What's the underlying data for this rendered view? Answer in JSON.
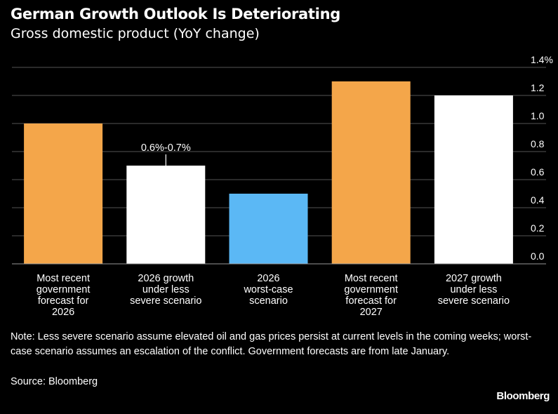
{
  "chart_data": {
    "type": "bar",
    "title": "German Growth Outlook Is Deteriorating",
    "subtitle": "Gross domestic product (YoY change)",
    "categories": [
      [
        "Most recent",
        "government",
        "forecast for",
        "2026"
      ],
      [
        "2026 growth",
        "under less",
        "severe scenario"
      ],
      [
        "2026",
        "worst-case",
        "scenario"
      ],
      [
        "Most recent",
        "government",
        "forecast for",
        "2027"
      ],
      [
        "2027 growth",
        "under less",
        "severe scenario"
      ]
    ],
    "values": [
      1.0,
      0.7,
      0.5,
      1.3,
      1.2
    ],
    "colors": [
      "#f4a64a",
      "#ffffff",
      "#5bb8f5",
      "#f4a64a",
      "#ffffff"
    ],
    "ylim": [
      0,
      1.4
    ],
    "yticks": [
      0.0,
      0.2,
      0.4,
      0.6,
      0.8,
      1.0,
      1.2,
      1.4
    ],
    "ytick_labels": [
      "0.0",
      "0.2",
      "0.4",
      "0.6",
      "0.8",
      "1.0",
      "1.2",
      "1.4%"
    ],
    "annotation": {
      "bar_index": 1,
      "text": "0.6%-0.7%"
    },
    "grid": true
  },
  "note": "Note: Less severe scenario assume elevated oil and gas prices persist at current levels in the coming weeks; worst-case scenario assumes an escalation of the conflict. Government forecasts are from late January.",
  "source": "Source: Bloomberg",
  "brand": "Bloomberg"
}
